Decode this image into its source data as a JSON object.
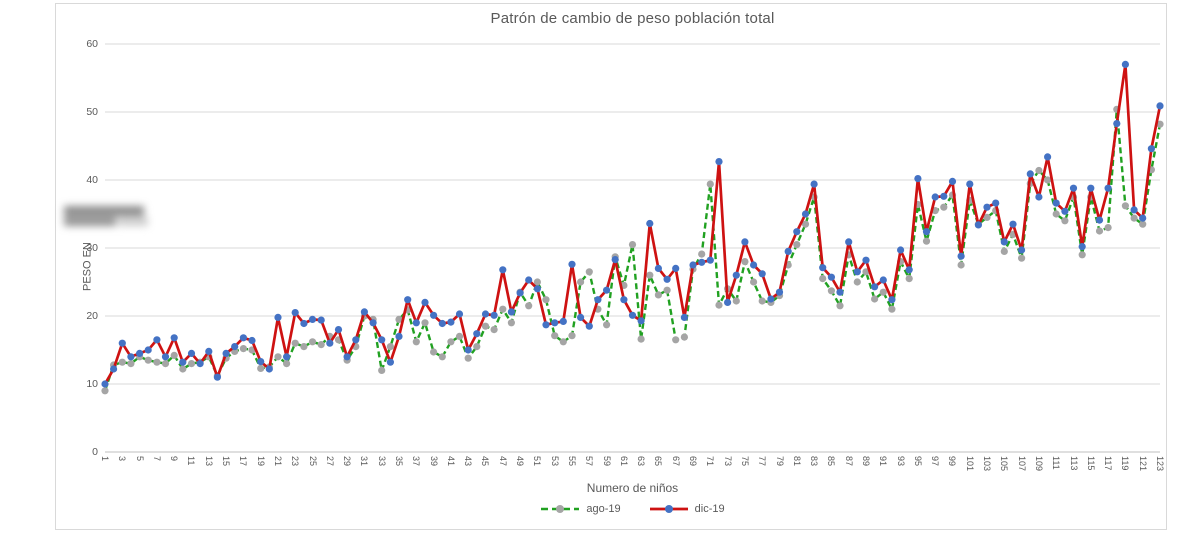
{
  "title": "Patrón de cambio de peso población total",
  "axes": {
    "y": {
      "title": "PESO EN",
      "min": 0,
      "max": 60,
      "tick_step": 10,
      "tick_labels": [
        "0",
        "10",
        "20",
        "30",
        "40",
        "50",
        "60"
      ]
    },
    "x": {
      "title": "Numero de niños",
      "first": 1,
      "last": 123,
      "label_step": 2
    }
  },
  "legend": {
    "items": [
      {
        "label": "ago-19",
        "style": "dashed",
        "line_color": "#21A121",
        "marker_color": "#A5A5A5"
      },
      {
        "label": "dic-19",
        "style": "solid",
        "line_color": "#CE1212",
        "marker_color": "#4472C4"
      }
    ]
  },
  "colors": {
    "grid": "#D9D9D9",
    "axis_line": "#BFBFBF",
    "text": "#595959",
    "panel_border": "#D9D9D9",
    "ago_line": "#21A121",
    "ago_marker": "#A5A5A5",
    "dic_line": "#CE1212",
    "dic_marker": "#4472C4"
  },
  "redaction": {
    "description": "blurred text block left of plot area"
  },
  "chart_data": {
    "type": "line",
    "title": "Patrón de cambio de peso población total",
    "xlabel": "Numero de niños",
    "ylabel": "PESO EN",
    "ylim": [
      0,
      60
    ],
    "x_range": {
      "start": 1,
      "end": 123,
      "step": 1
    },
    "grid": true,
    "legend_position": "bottom",
    "series": [
      {
        "name": "ago-19",
        "style": "dashed",
        "line_color": "#21A121",
        "marker_color": "#A5A5A5",
        "values": [
          9,
          12.8,
          13.2,
          13,
          14,
          13.5,
          13.2,
          13,
          14.2,
          12.2,
          13,
          13.2,
          14,
          11.2,
          13.8,
          14.8,
          15.2,
          15,
          12.3,
          12.5,
          14,
          13,
          16,
          15.5,
          16.2,
          15.8,
          17,
          16.5,
          13.5,
          15.5,
          20,
          19.5,
          12,
          15.5,
          19.5,
          20.9,
          16.2,
          19,
          14.7,
          14,
          16.2,
          17,
          13.8,
          15.5,
          18.5,
          18,
          21,
          19,
          23.5,
          21.5,
          25,
          22.4,
          17.1,
          16.2,
          17.1,
          25,
          26.5,
          21,
          18.7,
          28.7,
          24.5,
          30.5,
          16.6,
          26,
          23.1,
          23.8,
          16.5,
          16.9,
          26.9,
          29.1,
          39.4,
          21.6,
          24,
          22.2,
          28,
          25,
          22.2,
          22,
          23,
          27.5,
          30.5,
          33.5,
          37.5,
          25.5,
          23.7,
          21.5,
          29,
          25,
          26.5,
          22.5,
          23.5,
          21,
          28,
          25.5,
          36.4,
          31,
          35.5,
          36,
          37.8,
          27.5,
          37,
          33.5,
          34.5,
          35.5,
          29.5,
          32,
          28.5,
          39.5,
          41.4,
          40,
          35,
          34,
          37.5,
          29,
          37.5,
          32.5,
          33,
          50.4,
          36.2,
          34.4,
          33.5,
          41.5,
          48.2
        ]
      },
      {
        "name": "dic-19",
        "style": "solid",
        "line_color": "#CE1212",
        "marker_color": "#4472C4",
        "values": [
          10,
          12.2,
          16,
          14,
          14.5,
          15,
          16.5,
          14,
          16.8,
          13.2,
          14.5,
          13,
          14.8,
          11,
          14.5,
          15.5,
          16.8,
          16.4,
          13.3,
          12.2,
          19.8,
          14,
          20.5,
          18.9,
          19.5,
          19.4,
          16,
          18,
          14,
          16.5,
          20.6,
          19,
          16.5,
          13.2,
          17,
          22.4,
          19,
          22,
          20.1,
          18.9,
          19.1,
          20.3,
          15,
          17.4,
          20.3,
          20.1,
          26.8,
          20.6,
          23.4,
          25.3,
          24,
          18.7,
          19,
          19.2,
          27.6,
          19.8,
          18.5,
          22.4,
          23.8,
          28.3,
          22.4,
          20.1,
          19.3,
          33.6,
          27,
          25.4,
          27,
          19.8,
          27.5,
          27.9,
          28.2,
          42.7,
          22,
          26,
          30.9,
          27.5,
          26.2,
          22.5,
          23.5,
          29.5,
          32.4,
          35,
          39.4,
          27.1,
          25.7,
          23.5,
          30.9,
          26.5,
          28.2,
          24.3,
          25.3,
          22.4,
          29.7,
          26.8,
          40.2,
          32.4,
          37.5,
          37.6,
          39.8,
          28.8,
          39.4,
          33.4,
          36,
          36.6,
          30.9,
          33.5,
          29.7,
          40.9,
          37.5,
          43.4,
          36.6,
          35.4,
          38.8,
          30.2,
          38.8,
          34.1,
          38.8,
          48.3,
          57,
          35.6,
          34.4,
          44.6,
          50.9
        ]
      }
    ]
  }
}
